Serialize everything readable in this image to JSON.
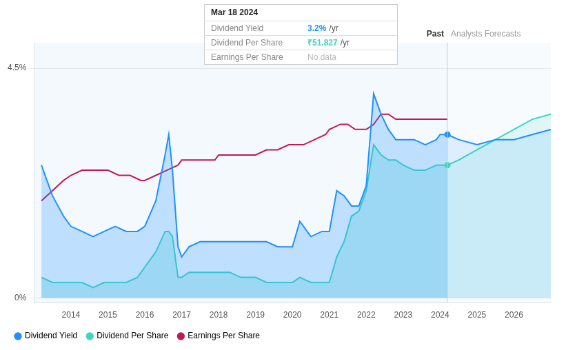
{
  "chart_data": {
    "type": "line",
    "xlim": [
      2013.0,
      2027.0
    ],
    "ylim": [
      -0.001,
      0.05
    ],
    "xticks": [
      2014,
      2015,
      2016,
      2017,
      2018,
      2019,
      2020,
      2021,
      2022,
      2023,
      2024,
      2025,
      2026
    ],
    "yticks": [
      {
        "value": 0.0,
        "label": "0%"
      },
      {
        "value": 0.045,
        "label": "4.5%"
      }
    ],
    "grid": "y",
    "legend": "lower left",
    "divider_x": 2024.2,
    "region_labels": [
      "Past",
      "Analysts Forecasts"
    ],
    "tooltip": {
      "title": "Mar 18 2024",
      "rows": [
        {
          "label": "Dividend Yield",
          "value": "3.2%",
          "unit": "/yr",
          "color": "#1e90ff"
        },
        {
          "label": "Dividend Per Share",
          "value": "₹51.827",
          "unit": "/yr",
          "color": "#3dd6c0"
        },
        {
          "label": "Earnings Per Share",
          "value": "No data",
          "color": "#bbbbbb"
        }
      ]
    },
    "series": [
      {
        "name": "Dividend Yield",
        "type": "area",
        "color": "#1e90ff",
        "x": [
          2013.2,
          2013.5,
          2013.8,
          2014.0,
          2014.3,
          2014.6,
          2014.9,
          2015.2,
          2015.5,
          2015.8,
          2016.0,
          2016.3,
          2016.55,
          2016.65,
          2016.75,
          2016.9,
          2017.0,
          2017.2,
          2017.5,
          2017.8,
          2018.0,
          2018.3,
          2018.6,
          2018.9,
          2019.0,
          2019.3,
          2019.6,
          2019.9,
          2020.0,
          2020.2,
          2020.5,
          2020.8,
          2021.0,
          2021.2,
          2021.4,
          2021.6,
          2021.8,
          2022.0,
          2022.2,
          2022.4,
          2022.6,
          2022.8,
          2023.0,
          2023.3,
          2023.6,
          2023.9,
          2024.0,
          2024.2
        ],
        "values": [
          0.026,
          0.02,
          0.016,
          0.014,
          0.013,
          0.012,
          0.013,
          0.014,
          0.013,
          0.013,
          0.014,
          0.019,
          0.028,
          0.032,
          0.025,
          0.01,
          0.008,
          0.01,
          0.011,
          0.011,
          0.011,
          0.011,
          0.011,
          0.011,
          0.011,
          0.011,
          0.01,
          0.01,
          0.01,
          0.015,
          0.012,
          0.013,
          0.013,
          0.021,
          0.02,
          0.018,
          0.018,
          0.022,
          0.04,
          0.036,
          0.033,
          0.031,
          0.031,
          0.031,
          0.03,
          0.031,
          0.032,
          0.032
        ]
      },
      {
        "name": "Dividend Per Share",
        "type": "area",
        "color": "#3dd6c0",
        "x": [
          2013.2,
          2013.5,
          2013.8,
          2014.0,
          2014.3,
          2014.6,
          2014.9,
          2015.2,
          2015.5,
          2015.8,
          2016.0,
          2016.3,
          2016.55,
          2016.65,
          2016.75,
          2016.9,
          2017.0,
          2017.2,
          2017.5,
          2017.8,
          2018.0,
          2018.3,
          2018.6,
          2018.9,
          2019.0,
          2019.3,
          2019.6,
          2019.9,
          2020.0,
          2020.2,
          2020.5,
          2020.8,
          2021.0,
          2021.2,
          2021.4,
          2021.6,
          2021.8,
          2022.0,
          2022.2,
          2022.4,
          2022.6,
          2022.8,
          2023.0,
          2023.3,
          2023.6,
          2023.9,
          2024.0,
          2024.2
        ],
        "values": [
          0.004,
          0.003,
          0.003,
          0.003,
          0.003,
          0.002,
          0.003,
          0.003,
          0.003,
          0.004,
          0.006,
          0.009,
          0.013,
          0.013,
          0.012,
          0.004,
          0.004,
          0.005,
          0.005,
          0.005,
          0.005,
          0.005,
          0.004,
          0.004,
          0.004,
          0.003,
          0.003,
          0.003,
          0.003,
          0.004,
          0.003,
          0.003,
          0.003,
          0.008,
          0.011,
          0.016,
          0.017,
          0.021,
          0.03,
          0.028,
          0.027,
          0.027,
          0.026,
          0.025,
          0.025,
          0.026,
          0.026,
          0.026
        ]
      },
      {
        "name": "Earnings Per Share",
        "type": "line",
        "color": "#c2185b",
        "x": [
          2013.2,
          2013.5,
          2013.8,
          2014.0,
          2014.3,
          2014.6,
          2014.9,
          2015.0,
          2015.3,
          2015.6,
          2015.9,
          2016.0,
          2016.3,
          2016.6,
          2016.9,
          2017.0,
          2017.3,
          2017.6,
          2017.9,
          2018.0,
          2018.3,
          2018.6,
          2018.9,
          2019.0,
          2019.3,
          2019.6,
          2019.9,
          2020.0,
          2020.3,
          2020.6,
          2020.9,
          2021.0,
          2021.3,
          2021.5,
          2021.7,
          2022.0,
          2022.2,
          2022.4,
          2022.6,
          2022.8,
          2023.0,
          2023.3,
          2023.6,
          2023.9,
          2024.0,
          2024.2
        ],
        "values": [
          0.019,
          0.021,
          0.023,
          0.024,
          0.025,
          0.025,
          0.025,
          0.025,
          0.024,
          0.024,
          0.023,
          0.023,
          0.024,
          0.025,
          0.026,
          0.027,
          0.027,
          0.027,
          0.027,
          0.028,
          0.028,
          0.028,
          0.028,
          0.028,
          0.029,
          0.029,
          0.03,
          0.03,
          0.03,
          0.031,
          0.032,
          0.033,
          0.034,
          0.034,
          0.033,
          0.033,
          0.034,
          0.036,
          0.036,
          0.035,
          0.035,
          0.035,
          0.035,
          0.035,
          0.035,
          0.035
        ]
      },
      {
        "type": "area",
        "color": "#1e90ff",
        "x": [
          2024.2,
          2024.5,
          2025.0,
          2025.5,
          2026.0,
          2026.5,
          2027.0
        ],
        "values": [
          0.032,
          0.031,
          0.03,
          0.031,
          0.031,
          0.032,
          0.033
        ]
      },
      {
        "type": "area",
        "color": "#3dd6c0",
        "x": [
          2024.2,
          2024.5,
          2025.0,
          2025.5,
          2026.0,
          2026.5,
          2027.0
        ],
        "values": [
          0.026,
          0.027,
          0.029,
          0.031,
          0.033,
          0.035,
          0.036
        ]
      },
      {
        "type": "scatter",
        "color": "#1e90ff",
        "x": [
          2024.2
        ],
        "values": [
          0.032
        ]
      },
      {
        "type": "scatter",
        "color": "#3dd6c0",
        "x": [
          2024.2
        ],
        "values": [
          0.026
        ]
      }
    ]
  }
}
